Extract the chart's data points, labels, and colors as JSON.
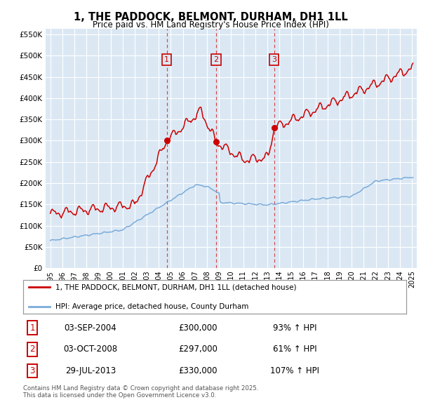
{
  "title": "1, THE PADDOCK, BELMONT, DURHAM, DH1 1LL",
  "subtitle": "Price paid vs. HM Land Registry's House Price Index (HPI)",
  "bg_color": "#dbe8f4",
  "red_color": "#cc0000",
  "blue_color": "#7aabda",
  "ylim": [
    0,
    562500
  ],
  "yticks": [
    0,
    50000,
    100000,
    150000,
    200000,
    250000,
    300000,
    350000,
    400000,
    450000,
    500000,
    550000
  ],
  "xlim_start": 1994.6,
  "xlim_end": 2025.4,
  "sale_dates": [
    2004.67,
    2008.75,
    2013.57
  ],
  "sale_prices": [
    300000,
    297000,
    330000
  ],
  "sale_labels": [
    "1",
    "2",
    "3"
  ],
  "legend_line1": "1, THE PADDOCK, BELMONT, DURHAM, DH1 1LL (detached house)",
  "legend_line2": "HPI: Average price, detached house, County Durham",
  "table_data": [
    [
      "1",
      "03-SEP-2004",
      "£300,000",
      "93% ↑ HPI"
    ],
    [
      "2",
      "03-OCT-2008",
      "£297,000",
      "61% ↑ HPI"
    ],
    [
      "3",
      "29-JUL-2013",
      "£330,000",
      "107% ↑ HPI"
    ]
  ],
  "footnote": "Contains HM Land Registry data © Crown copyright and database right 2025.\nThis data is licensed under the Open Government Licence v3.0."
}
